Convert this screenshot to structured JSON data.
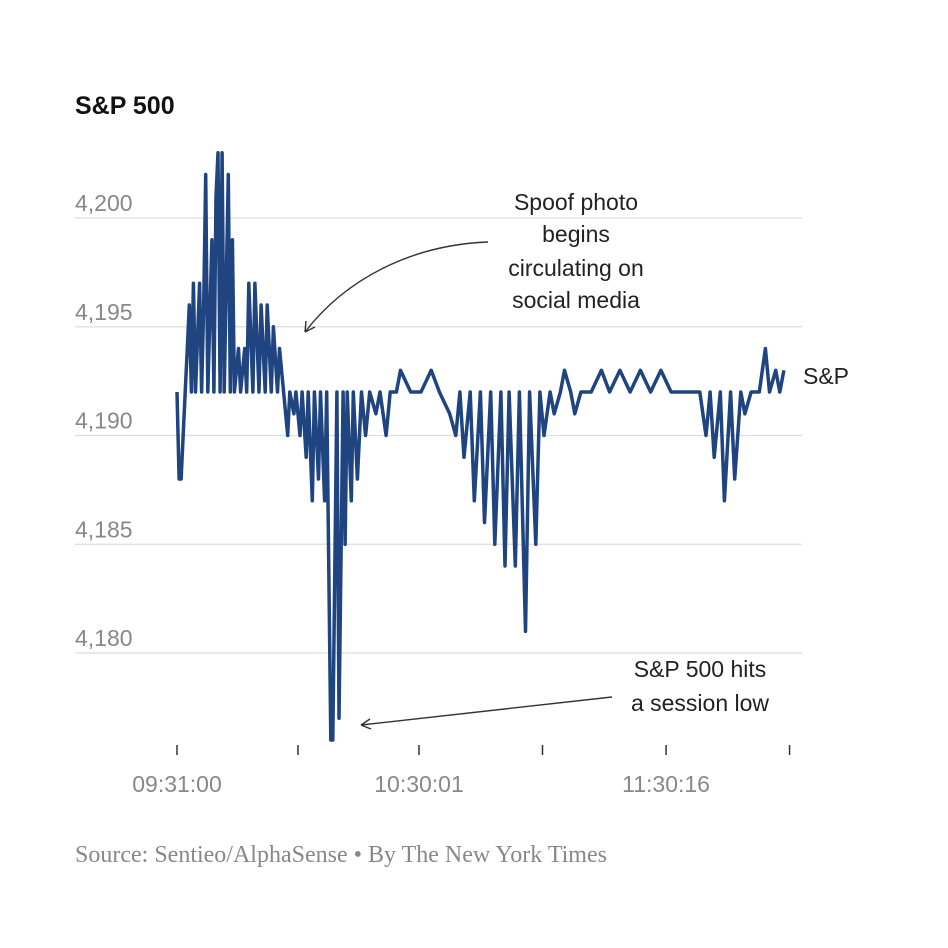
{
  "chart_data": {
    "type": "line",
    "title": "S&P 500",
    "xlabel": "",
    "ylabel": "",
    "ylim": [
      4176,
      4203
    ],
    "y_ticks": [
      "4,180",
      "4,185",
      "4,190",
      "4,195",
      "4,200"
    ],
    "y_tick_values": [
      4180,
      4185,
      4190,
      4195,
      4200
    ],
    "x_ticks": [
      "09:31:00",
      "",
      "10:30:01",
      "",
      "11:30:16",
      ""
    ],
    "x_tick_times": [
      "09:31:00",
      "10:00:30",
      "10:30:01",
      "11:00:08",
      "11:30:16",
      "12:00:23"
    ],
    "grid": true,
    "color": "#1f4480",
    "series": [
      {
        "name": "S&P",
        "x": [
          "09:31:00",
          "09:31:30",
          "09:32:00",
          "09:33:00",
          "09:33:30",
          "09:34:00",
          "09:34:30",
          "09:35:00",
          "09:35:30",
          "09:36:30",
          "09:37:00",
          "09:37:30",
          "09:38:00",
          "09:38:30",
          "09:39:30",
          "09:40:00",
          "09:40:30",
          "09:41:00",
          "09:41:30",
          "09:42:00",
          "09:42:30",
          "09:43:30",
          "09:44:00",
          "09:44:30",
          "09:45:00",
          "09:46:00",
          "09:46:30",
          "09:47:30",
          "09:48:00",
          "09:48:30",
          "09:49:30",
          "09:50:00",
          "09:51:00",
          "09:51:30",
          "09:52:30",
          "09:53:00",
          "09:54:00",
          "09:54:30",
          "09:55:30",
          "09:56:00",
          "09:57:00",
          "09:58:00",
          "09:58:30",
          "09:59:30",
          "10:00:00",
          "10:01:00",
          "10:01:30",
          "10:02:30",
          "10:03:00",
          "10:04:00",
          "10:04:30",
          "10:05:30",
          "10:06:00",
          "10:07:00",
          "10:07:30",
          "10:08:30",
          "10:09:00",
          "10:10:00",
          "10:10:30",
          "10:11:30",
          "10:12:00",
          "10:12:30",
          "10:13:30",
          "10:14:00",
          "10:15:00",
          "10:16:00",
          "10:17:00",
          "10:18:00",
          "10:19:30",
          "10:20:30",
          "10:22:00",
          "10:23:00",
          "10:24:30",
          "10:25:30",
          "10:28:00",
          "10:30:30",
          "10:33:00",
          "10:35:00",
          "10:37:30",
          "10:39:00",
          "10:40:00",
          "10:41:00",
          "10:42:30",
          "10:43:30",
          "10:45:00",
          "10:46:00",
          "10:47:30",
          "10:48:30",
          "10:50:00",
          "10:51:00",
          "10:52:00",
          "10:53:30",
          "10:54:30",
          "10:56:00",
          "10:57:00",
          "10:58:30",
          "10:59:30",
          "11:00:30",
          "11:02:00",
          "11:03:00",
          "11:04:30",
          "11:05:30",
          "11:07:00",
          "11:08:00",
          "11:09:30",
          "11:12:00",
          "11:14:30",
          "11:16:30",
          "11:19:00",
          "11:21:30",
          "11:24:00",
          "11:26:30",
          "11:29:00",
          "11:31:30",
          "11:36:00",
          "11:38:30",
          "11:40:00",
          "11:41:00",
          "11:42:00",
          "11:43:30",
          "11:44:30",
          "11:46:00",
          "11:47:00",
          "11:48:30",
          "11:49:30",
          "11:51:00",
          "11:53:00",
          "11:54:30",
          "11:55:30",
          "11:57:00",
          "11:58:00",
          "11:59:00"
        ],
        "values": [
          4192,
          4188,
          4188,
          4192,
          4194,
          4196,
          4192,
          4197,
          4192,
          4197,
          4192,
          4196,
          4202,
          4192,
          4199,
          4192,
          4201,
          4203,
          4192,
          4203,
          4192,
          4202,
          4192,
          4199,
          4192,
          4194,
          4192,
          4194,
          4192,
          4197,
          4192,
          4197,
          4192,
          4196,
          4192,
          4196,
          4192,
          4195,
          4192,
          4194,
          4192,
          4190,
          4192,
          4191,
          4192,
          4190,
          4192,
          4189,
          4192,
          4187,
          4192,
          4188,
          4192,
          4187,
          4192,
          4176,
          4176,
          4192,
          4177,
          4192,
          4185,
          4192,
          4187,
          4192,
          4188,
          4192,
          4190,
          4192,
          4191,
          4192,
          4190,
          4192,
          4192,
          4193,
          4192,
          4192,
          4193,
          4192,
          4191,
          4190,
          4192,
          4189,
          4192,
          4187,
          4192,
          4186,
          4192,
          4185,
          4192,
          4184,
          4192,
          4184,
          4192,
          4181,
          4192,
          4185,
          4192,
          4190,
          4192,
          4191,
          4192,
          4193,
          4192,
          4191,
          4192,
          4192,
          4193,
          4192,
          4193,
          4192,
          4193,
          4192,
          4193,
          4192,
          4192,
          4192,
          4190,
          4192,
          4189,
          4192,
          4187,
          4192,
          4188,
          4192,
          4191,
          4192,
          4192,
          4194,
          4192,
          4193,
          4192,
          4193
        ]
      }
    ],
    "annotations": [
      {
        "lines": [
          "Spoof photo",
          "begins",
          "circulating on",
          "social media"
        ],
        "time": "10:03:00",
        "value": 4194.6
      },
      {
        "lines": [
          "S&P 500 hits",
          "a session low"
        ],
        "time": "10:10:30",
        "value": 4176.6
      }
    ]
  },
  "source": "Source: Sentieo/AlphaSense • By The New York Times"
}
